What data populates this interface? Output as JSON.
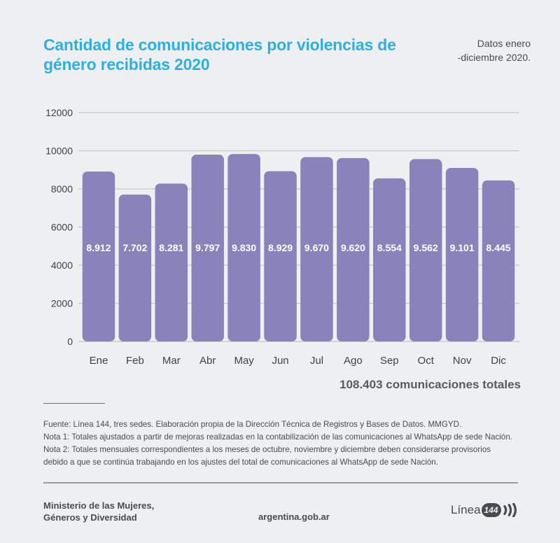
{
  "header": {
    "title": "Cantidad de comunicaciones por violencias de género recibidas 2020",
    "subtitle_line1": "Datos enero",
    "subtitle_line2": "-diciembre 2020."
  },
  "colors": {
    "title": "#2cb0e0",
    "bar": "#8a82ba",
    "grid": "#c6c6cc",
    "text": "#4a4a52"
  },
  "chart_data": {
    "type": "bar",
    "title": "Cantidad de comunicaciones por violencias de género recibidas 2020",
    "xlabel": "",
    "ylabel": "",
    "categories": [
      "Ene",
      "Feb",
      "Mar",
      "Abr",
      "May",
      "Jun",
      "Jul",
      "Ago",
      "Sep",
      "Oct",
      "Nov",
      "Dic"
    ],
    "values": [
      8912,
      7702,
      8281,
      9797,
      9830,
      8929,
      9670,
      9620,
      8554,
      9562,
      9101,
      8445
    ],
    "data_labels": [
      "8.912",
      "7.702",
      "8.281",
      "9.797",
      "9.830",
      "8.929",
      "9.670",
      "9.620",
      "8.554",
      "9.562",
      "9.101",
      "8.445"
    ],
    "ylim": [
      0,
      12000
    ],
    "yticks": [
      0,
      2000,
      4000,
      6000,
      8000,
      10000,
      12000
    ],
    "ytick_labels": [
      "0",
      "2000",
      "4000",
      "6000",
      "8000",
      "10000",
      "12000"
    ],
    "grid": true,
    "legend": "none"
  },
  "total_label": "108.403 comunicaciones totales",
  "notes": {
    "fuente": "Fuente: Línea 144, tres sedes. Elaboración propia de la Dirección Técnica de Registros y Bases de Datos. MMGYD.",
    "nota1": "Nota 1: Totales ajustados a partir de mejoras realizadas en la contabilización de las comunicaciones al WhatsApp de sede Nación.",
    "nota2_line1": "Nota 2: Totales mensuales correspondientes a los meses de octubre, noviembre y diciembre deben considerarse provisorios",
    "nota2_line2": "debido a que se continúa trabajando en los ajustes del total de comunicaciones al WhatsApp de sede Nación."
  },
  "footer": {
    "ministry_line1": "Ministerio de las Mujeres,",
    "ministry_line2": "Géneros y Diversidad",
    "website": "argentina.gob.ar",
    "logo_text": "Línea",
    "logo_number": "144"
  }
}
